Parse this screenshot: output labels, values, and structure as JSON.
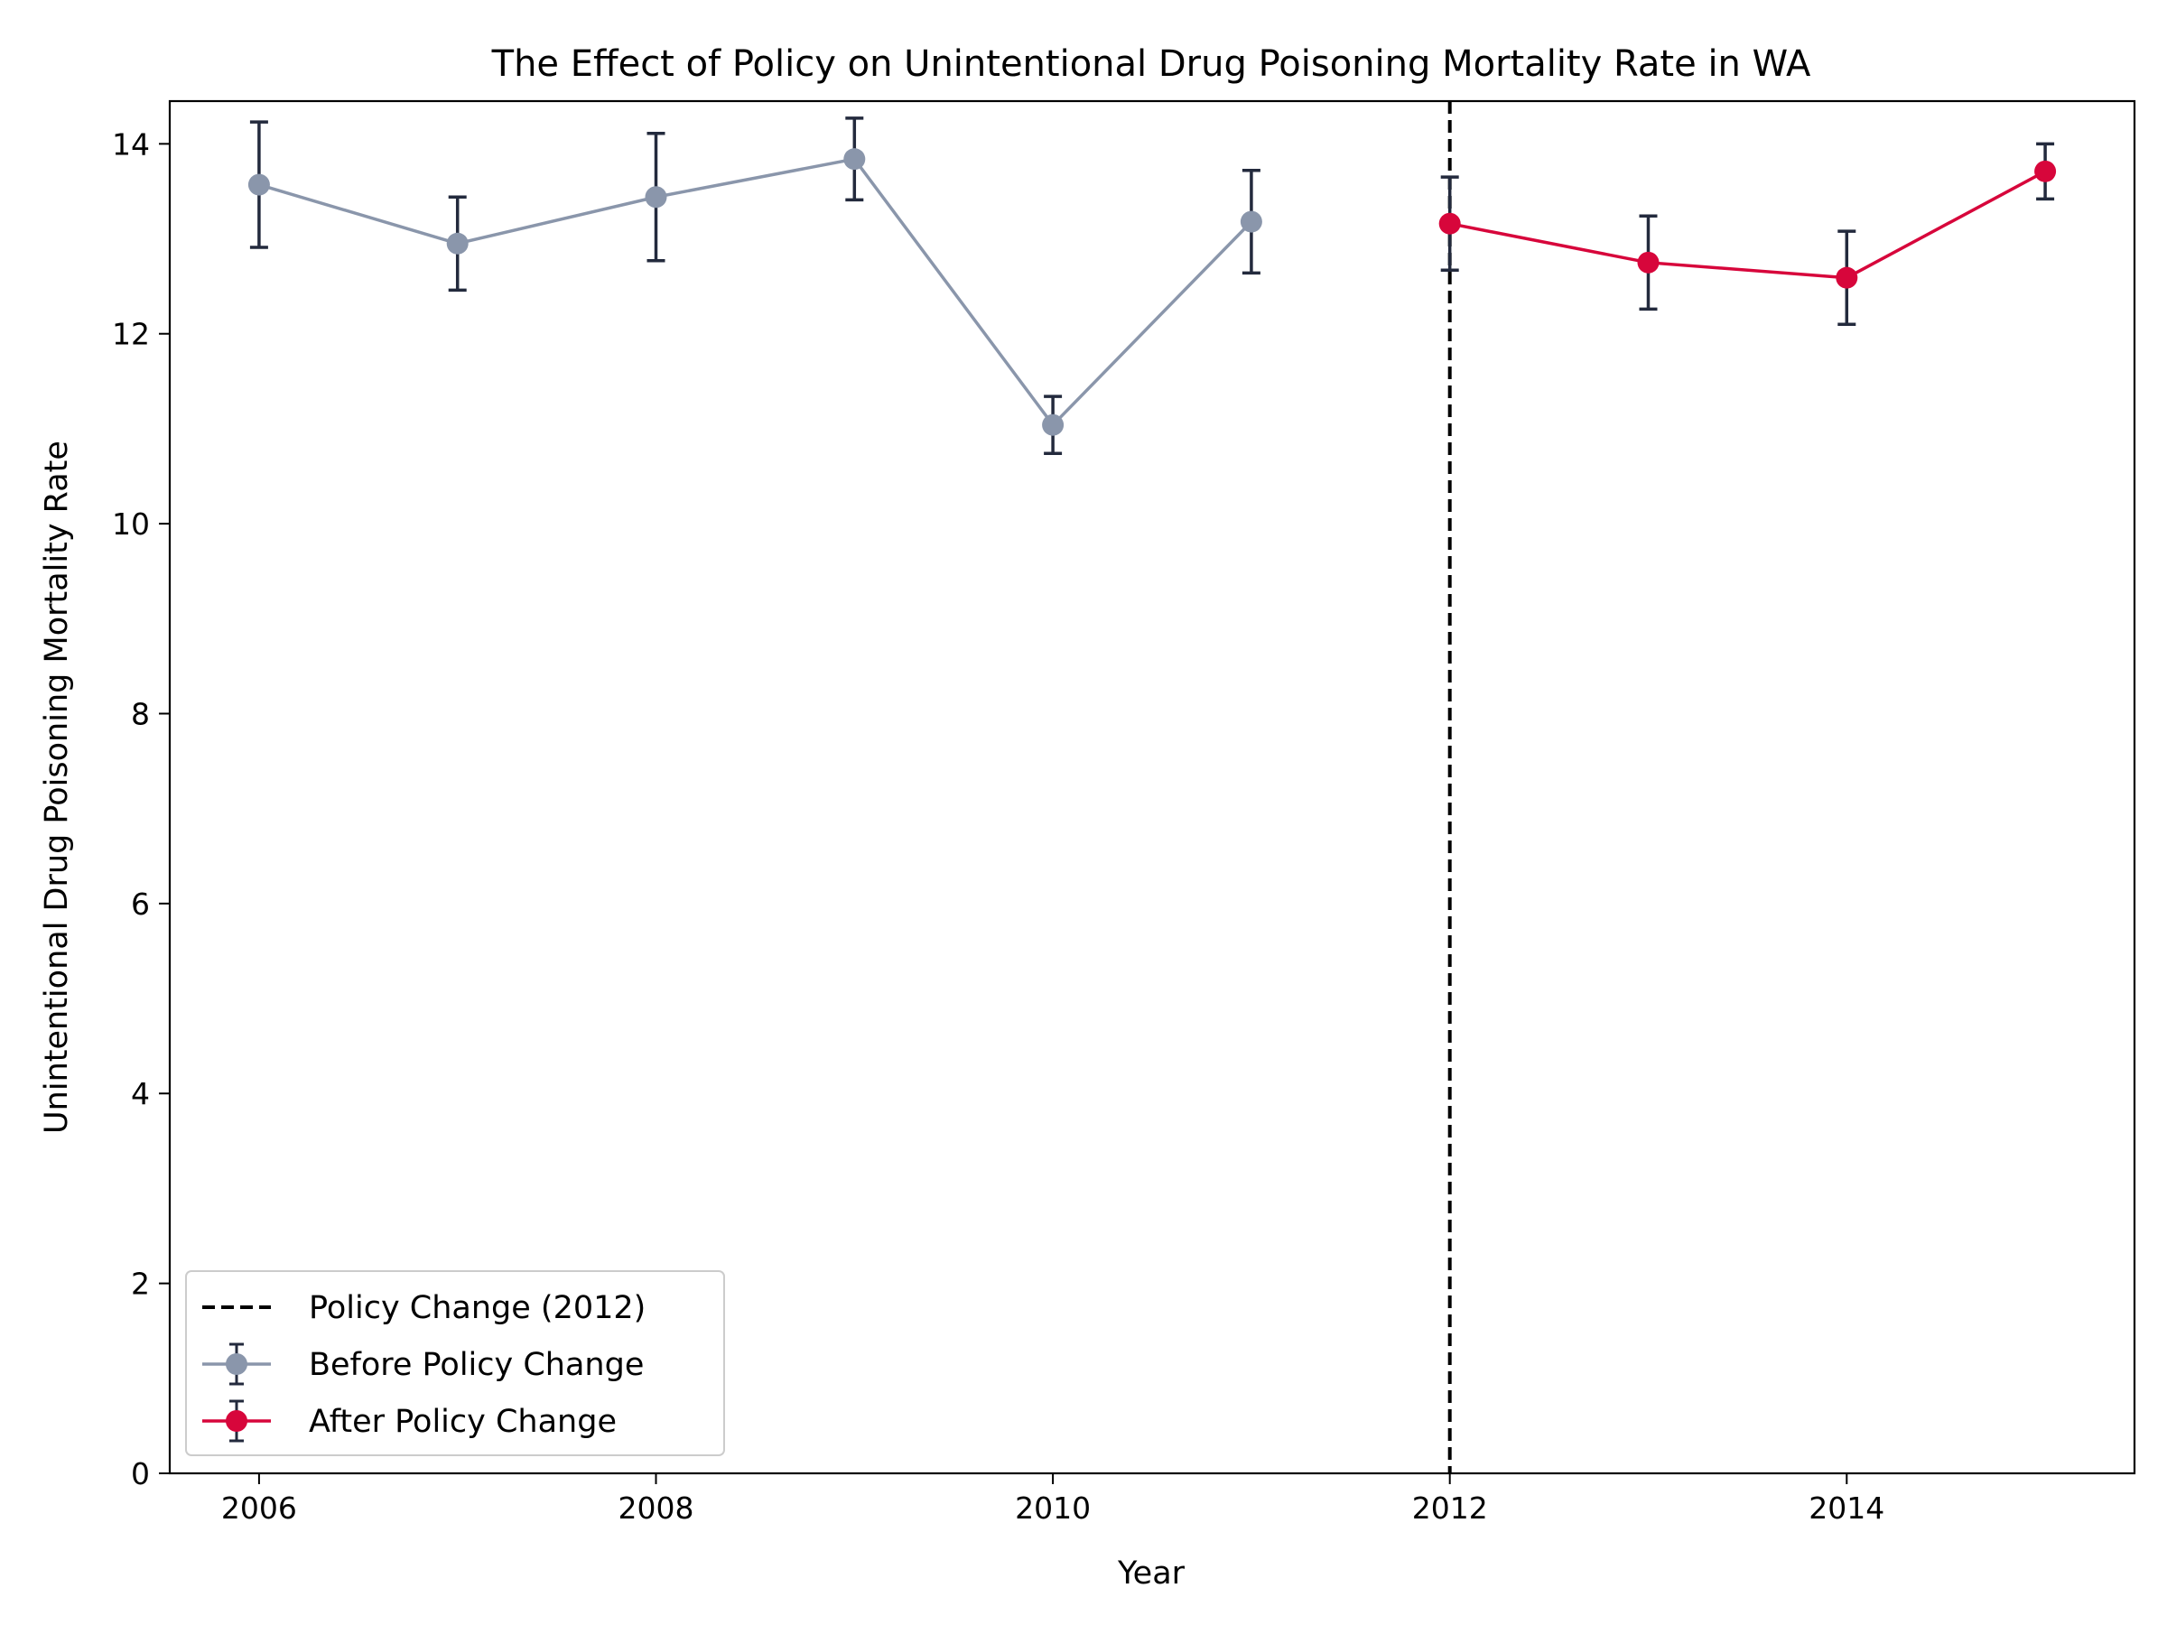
{
  "chart_data": {
    "type": "line",
    "title": "The Effect of Policy on Unintentional Drug Poisoning Mortality Rate in WA",
    "xlabel": "Year",
    "ylabel": "Unintentional Drug Poisoning Mortality Rate",
    "xlim": [
      2005.55,
      2015.45
    ],
    "ylim": [
      0,
      14.45
    ],
    "xticks": [
      2006,
      2008,
      2010,
      2012,
      2014
    ],
    "yticks": [
      0,
      2,
      4,
      6,
      8,
      10,
      12,
      14
    ],
    "grid": false,
    "legend_position": "lower-left",
    "vline": {
      "x": 2012,
      "label": "Policy Change (2012)",
      "color": "#000000",
      "style": "dashed"
    },
    "series": [
      {
        "name": "Before Policy Change",
        "color": "#8a96ab",
        "x": [
          2006,
          2007,
          2008,
          2009,
          2010,
          2011
        ],
        "y": [
          13.57,
          12.95,
          13.44,
          13.84,
          11.04,
          13.18
        ],
        "err_low": [
          12.91,
          12.46,
          12.77,
          13.41,
          10.74,
          12.64
        ],
        "err_high": [
          14.23,
          13.44,
          14.11,
          14.27,
          11.34,
          13.72
        ]
      },
      {
        "name": "After Policy Change",
        "color": "#d7063b",
        "x": [
          2012,
          2013,
          2014,
          2015
        ],
        "y": [
          13.16,
          12.75,
          12.59,
          13.71
        ],
        "err_low": [
          12.67,
          12.26,
          12.1,
          13.42
        ],
        "err_high": [
          13.65,
          13.24,
          13.08,
          14.0
        ]
      }
    ],
    "errorbar_color": "#232a3d"
  }
}
